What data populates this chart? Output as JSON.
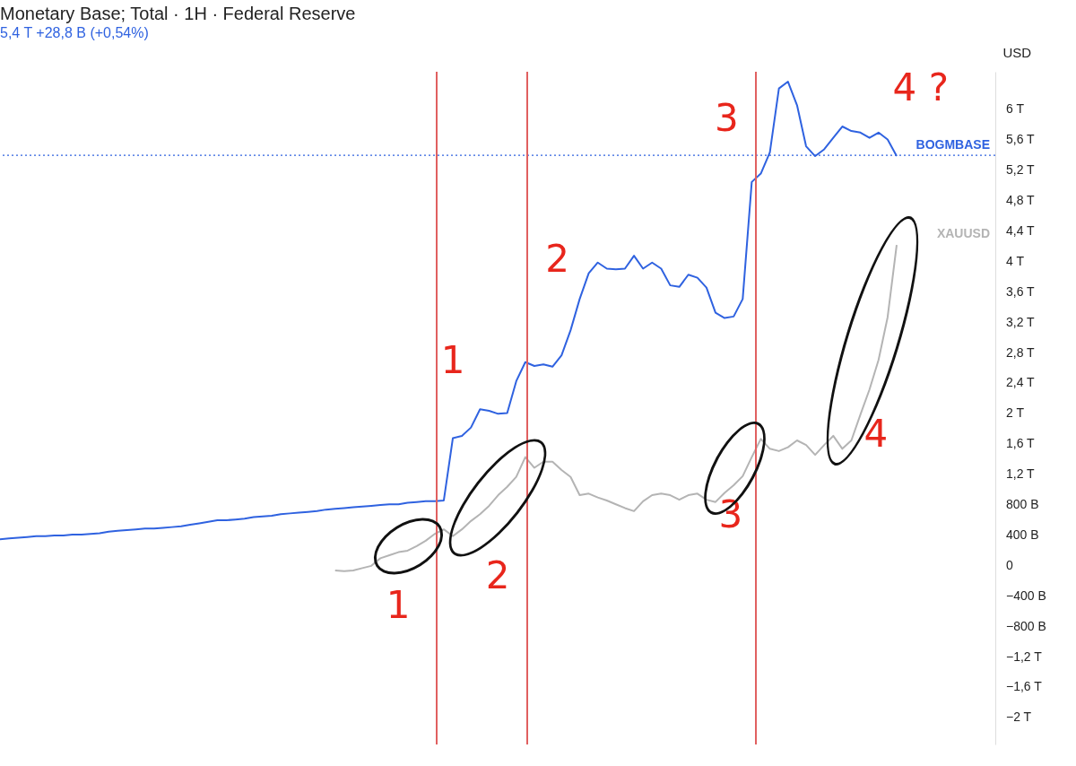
{
  "chart_data": {
    "type": "line",
    "title": "Monetary Base; Total · 1H · Federal Reserve",
    "subtitle": "5,4 T  +28,8 B (+0,54%)",
    "ylabel": "USD",
    "categories": [
      null,
      null,
      null,
      null,
      null,
      null,
      null,
      null,
      null,
      null,
      null,
      null,
      null,
      null,
      null,
      null,
      null,
      null,
      null,
      null,
      null,
      null,
      null,
      null,
      null,
      null,
      null,
      null,
      null,
      null,
      null,
      null,
      null,
      null,
      null,
      null,
      null,
      null,
      null,
      null,
      null,
      null,
      null,
      null,
      null,
      null,
      null,
      null,
      null,
      null,
      null,
      null,
      null,
      null,
      null,
      null,
      null,
      null,
      null,
      null,
      null,
      null,
      null,
      null,
      null,
      null,
      null,
      null,
      null,
      null,
      null,
      null,
      null,
      null,
      null,
      null,
      null,
      null,
      null,
      null,
      null,
      null,
      null,
      null,
      null,
      null,
      null,
      null,
      null,
      null,
      null,
      null,
      null,
      null,
      null,
      null,
      null,
      null,
      null,
      null
    ],
    "ylim": [
      -2350000000000.0,
      6500000000000.0
    ],
    "yticks": [
      {
        "value": -2000000000000.0,
        "label": "−2 T"
      },
      {
        "value": -1600000000000.0,
        "label": "−1,6 T"
      },
      {
        "value": -1200000000000.0,
        "label": "−1,2 T"
      },
      {
        "value": -800000000000.0,
        "label": "−800 B"
      },
      {
        "value": -400000000000.0,
        "label": "−400 B"
      },
      0,
      {
        "value": 400000000000.0,
        "label": "400 B"
      },
      {
        "value": 800000000000.0,
        "label": "800 B"
      },
      {
        "value": 1200000000000.0,
        "label": "1,2 T"
      },
      {
        "value": 1600000000000.0,
        "label": "1,6 T"
      },
      {
        "value": 2000000000000.0,
        "label": "2 T"
      },
      {
        "value": 2400000000000.0,
        "label": "2,4 T"
      },
      {
        "value": 2800000000000.0,
        "label": "2,8 T"
      },
      {
        "value": 3200000000000.0,
        "label": "3,2 T"
      },
      {
        "value": 3600000000000.0,
        "label": "3,6 T"
      },
      {
        "value": 4000000000000.0,
        "label": "4 T"
      },
      {
        "value": 4400000000000.0,
        "label": "4,4 T"
      },
      {
        "value": 4800000000000.0,
        "label": "4,8 T"
      },
      {
        "value": 5200000000000.0,
        "label": "5,2 T"
      },
      {
        "value": 5600000000000.0,
        "label": "5,6 T"
      },
      {
        "value": 6000000000000.0,
        "label": "6 T"
      }
    ],
    "tick_labels": "y",
    "grid": false,
    "legend": false,
    "series": [
      {
        "name": "BOGMBASE",
        "color": "#2f62e0",
        "values": [
          350000000000.0,
          360000000000.0,
          370000000000.0,
          380000000000.0,
          390000000000.0,
          390000000000.0,
          400000000000.0,
          400000000000.0,
          410000000000.0,
          410000000000.0,
          420000000000.0,
          430000000000.0,
          450000000000.0,
          460000000000.0,
          470000000000.0,
          480000000000.0,
          490000000000.0,
          490000000000.0,
          500000000000.0,
          510000000000.0,
          520000000000.0,
          540000000000.0,
          560000000000.0,
          580000000000.0,
          600000000000.0,
          600000000000.0,
          610000000000.0,
          620000000000.0,
          640000000000.0,
          650000000000.0,
          660000000000.0,
          680000000000.0,
          690000000000.0,
          700000000000.0,
          710000000000.0,
          720000000000.0,
          740000000000.0,
          750000000000.0,
          760000000000.0,
          770000000000.0,
          780000000000.0,
          790000000000.0,
          800000000000.0,
          810000000000.0,
          810000000000.0,
          830000000000.0,
          840000000000.0,
          850000000000.0,
          850000000000.0,
          860000000000.0,
          1680000000000.0,
          1710000000000.0,
          1820000000000.0,
          2060000000000.0,
          2040000000000.0,
          2000000000000.0,
          2010000000000.0,
          2430000000000.0,
          2680000000000.0,
          2630000000000.0,
          2650000000000.0,
          2620000000000.0,
          2770000000000.0,
          3100000000000.0,
          3510000000000.0,
          3850000000000.0,
          3990000000000.0,
          3910000000000.0,
          3900000000000.0,
          3910000000000.0,
          4080000000000.0,
          3910000000000.0,
          3990000000000.0,
          3910000000000.0,
          3690000000000.0,
          3670000000000.0,
          3830000000000.0,
          3790000000000.0,
          3660000000000.0,
          3330000000000.0,
          3260000000000.0,
          3280000000000.0,
          3510000000000.0,
          5050000000000.0,
          5160000000000.0,
          5440000000000.0,
          6280000000000.0,
          6370000000000.0,
          6060000000000.0,
          5520000000000.0,
          5390000000000.0,
          5480000000000.0,
          5630000000000.0,
          5780000000000.0,
          5720000000000.0,
          5700000000000.0,
          5630000000000.0,
          5700000000000.0,
          5610000000000.0,
          5390000000000.0
        ]
      },
      {
        "name": "XAUUSD",
        "color": "#b4b4b4",
        "values": [
          null,
          null,
          null,
          null,
          null,
          null,
          null,
          null,
          null,
          null,
          null,
          null,
          null,
          null,
          null,
          null,
          null,
          null,
          null,
          null,
          null,
          null,
          null,
          null,
          null,
          null,
          null,
          null,
          null,
          null,
          null,
          null,
          null,
          null,
          null,
          null,
          null,
          -60000000000.0,
          -70000000000.0,
          -60000000000.0,
          -30000000000.0,
          0,
          100000000000.0,
          140000000000.0,
          180000000000.0,
          200000000000.0,
          260000000000.0,
          330000000000.0,
          420000000000.0,
          480000000000.0,
          390000000000.0,
          480000000000.0,
          590000000000.0,
          680000000000.0,
          790000000000.0,
          930000000000.0,
          1040000000000.0,
          1170000000000.0,
          1430000000000.0,
          1290000000000.0,
          1370000000000.0,
          1370000000000.0,
          1260000000000.0,
          1170000000000.0,
          930000000000.0,
          950000000000.0,
          900000000000.0,
          860000000000.0,
          810000000000.0,
          760000000000.0,
          720000000000.0,
          850000000000.0,
          930000000000.0,
          950000000000.0,
          930000000000.0,
          870000000000.0,
          930000000000.0,
          950000000000.0,
          870000000000.0,
          840000000000.0,
          960000000000.0,
          1060000000000.0,
          1180000000000.0,
          1430000000000.0,
          1670000000000.0,
          1540000000000.0,
          1510000000000.0,
          1560000000000.0,
          1650000000000.0,
          1590000000000.0,
          1460000000000.0,
          1590000000000.0,
          1710000000000.0,
          1540000000000.0,
          1650000000000.0,
          1990000000000.0,
          2320000000000.0,
          2710000000000.0,
          3270000000000.0,
          4220000000000.0
        ]
      }
    ],
    "ref_lines": [
      {
        "axis": "y",
        "value": 5400000000000.0,
        "color": "#2f62e0",
        "line_style": "dotted"
      }
    ],
    "annotations": [
      "1",
      "2",
      "3",
      "4 ?",
      "1",
      "2",
      "3",
      "4"
    ]
  }
}
